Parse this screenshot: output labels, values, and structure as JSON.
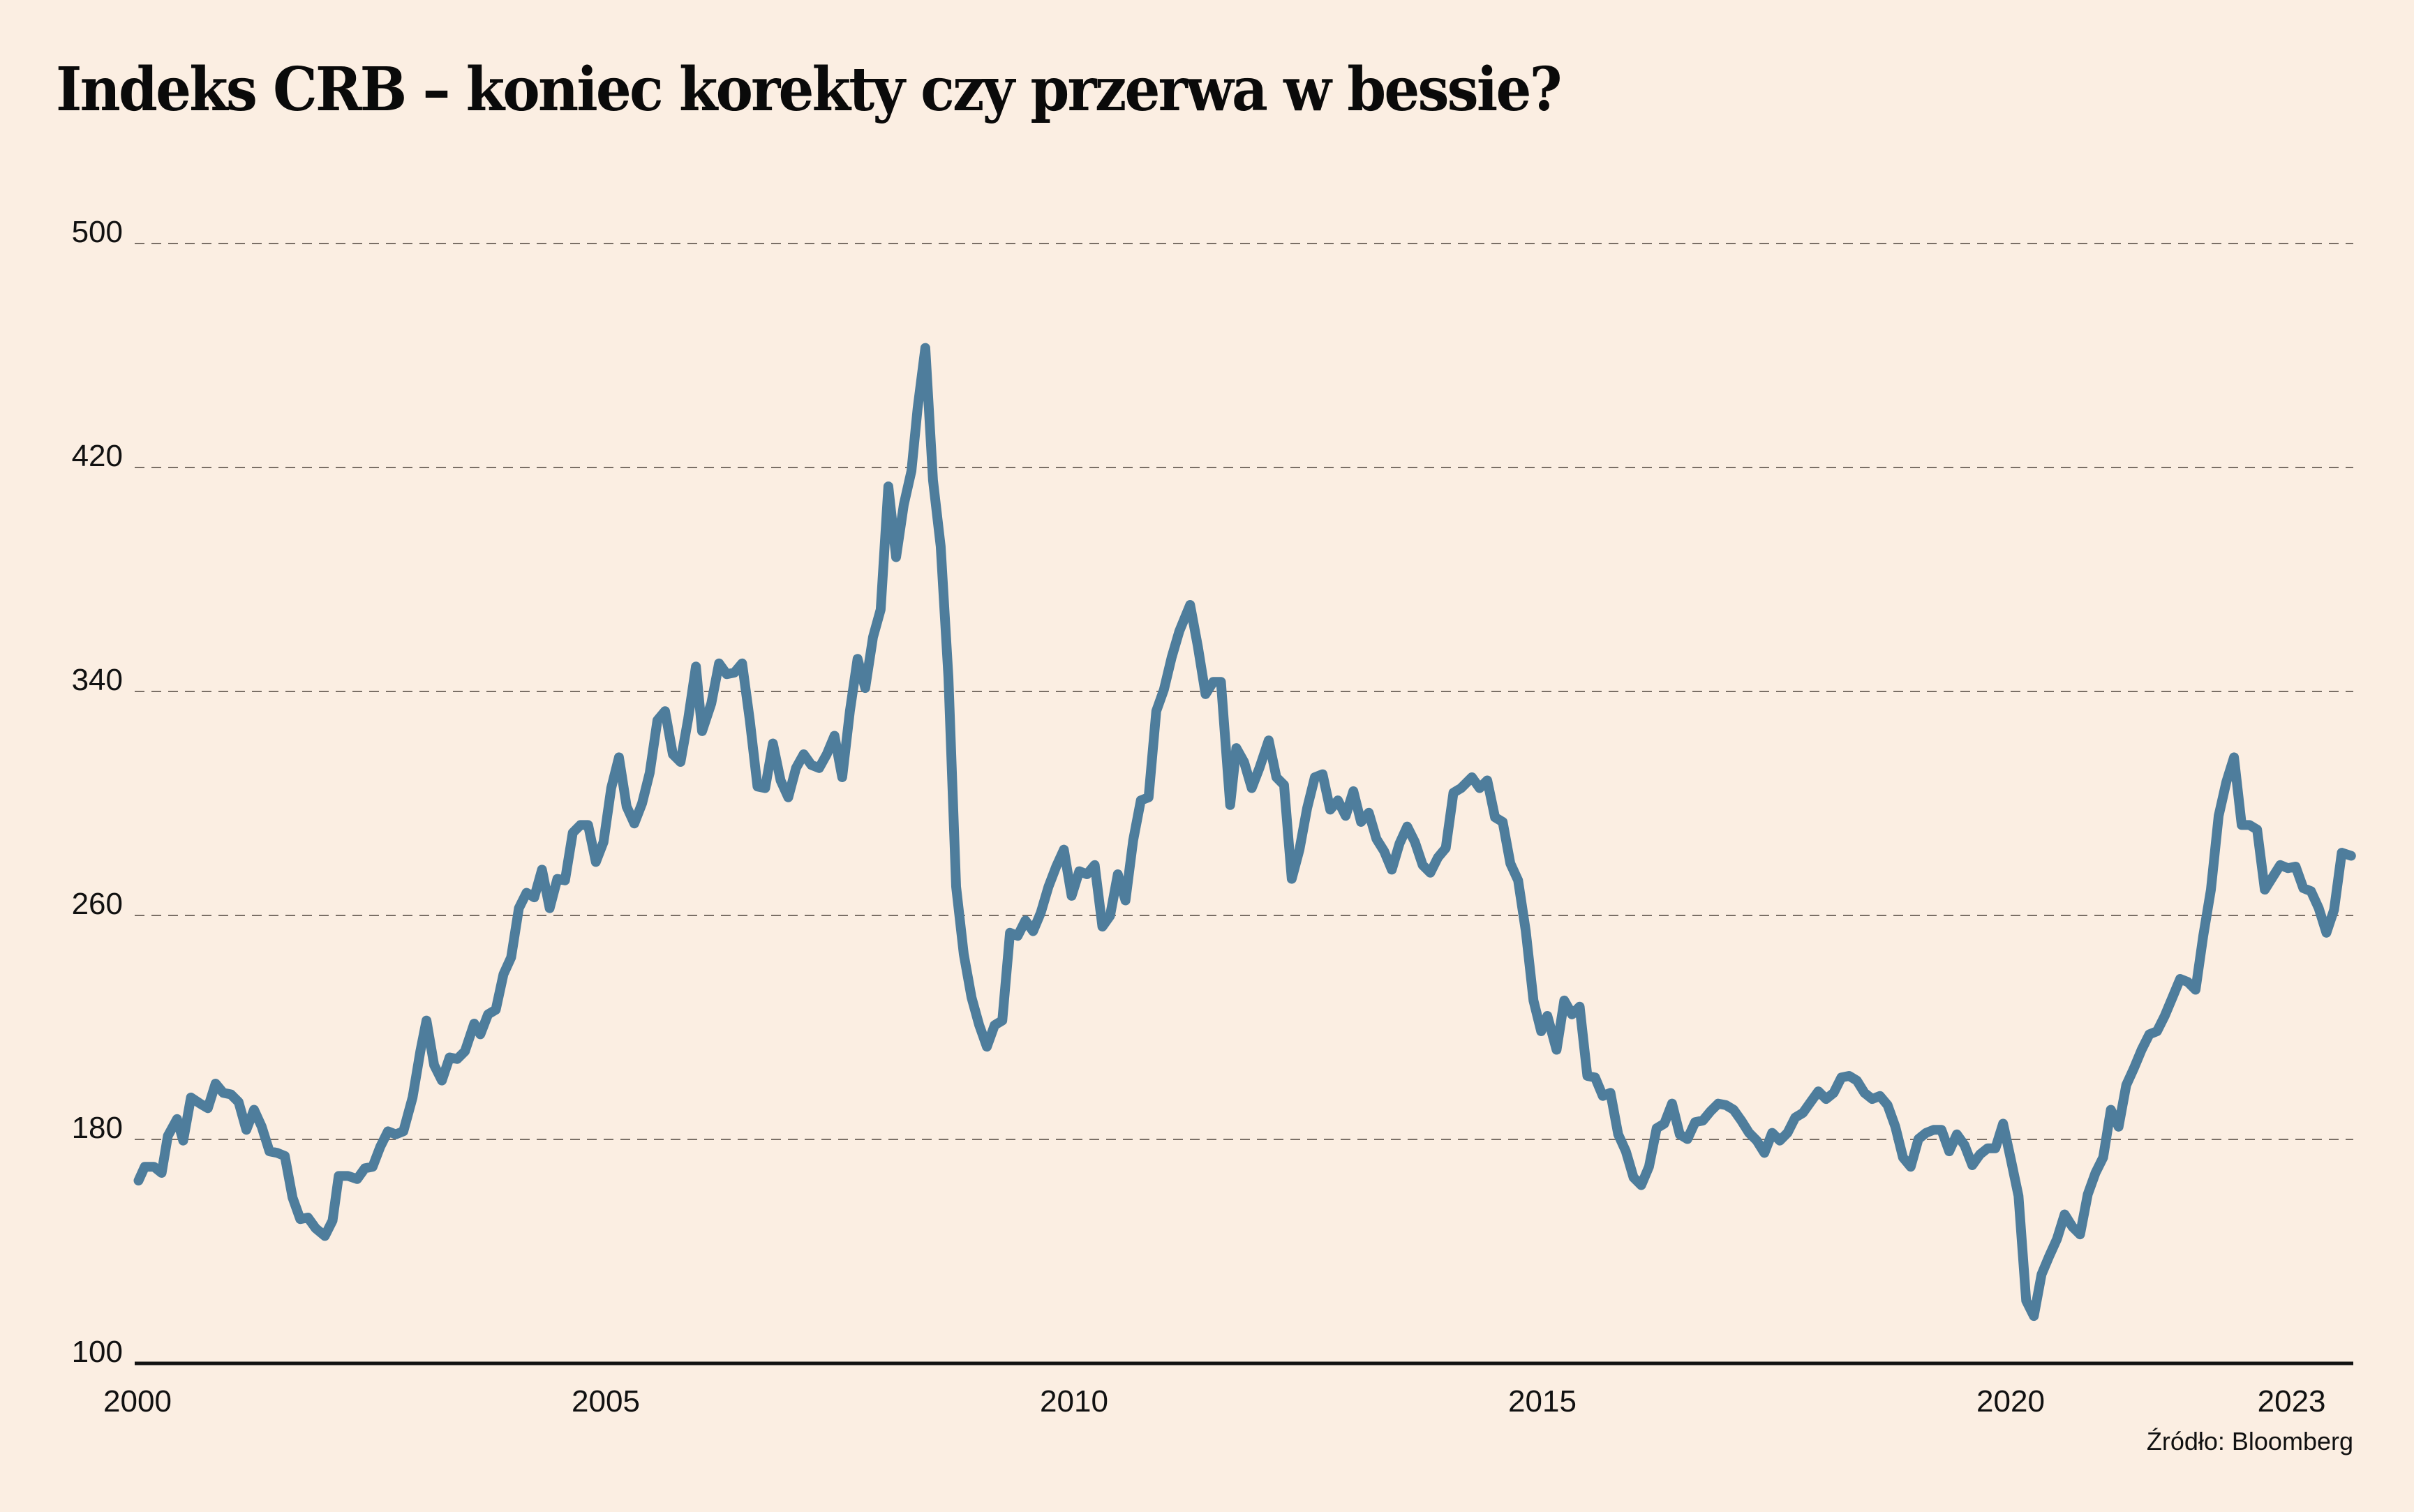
{
  "chart_data": {
    "type": "line",
    "title": "Indeks CRB – koniec korekty czy przerwa w bessie?",
    "source": "Źródło: Bloomberg",
    "xlabel": "",
    "ylabel": "",
    "ylim": [
      100,
      500
    ],
    "xlim": [
      2000,
      2023.65
    ],
    "yticks": [
      100,
      180,
      260,
      340,
      420,
      500
    ],
    "ytick_labels": [
      "100",
      "180",
      "260",
      "340",
      "420",
      "500"
    ],
    "xticks": [
      2000,
      2005,
      2010,
      2015,
      2020,
      2023
    ],
    "xtick_labels": [
      "2000",
      "2005",
      "2010",
      "2015",
      "2020",
      "2023"
    ],
    "grid": "horizontal-dashed",
    "line_color": "#4E7D9C",
    "series": [
      {
        "name": "Indeks CRB",
        "points_preview": [
          [
            90,
            767
          ],
          [
            94,
            758
          ],
          [
            100,
            758
          ],
          [
            105,
            762
          ],
          [
            109,
            738
          ],
          [
            115,
            727
          ],
          [
            119,
            741
          ],
          [
            124,
            713
          ],
          [
            130,
            717
          ],
          [
            135,
            720
          ],
          [
            140,
            704
          ],
          [
            145,
            710
          ],
          [
            150,
            711
          ],
          [
            155,
            716
          ],
          [
            160,
            734
          ],
          [
            165,
            721
          ],
          [
            170,
            732
          ],
          [
            175,
            748
          ],
          [
            180,
            749
          ],
          [
            185,
            751
          ],
          [
            190,
            778
          ],
          [
            195,
            792
          ],
          [
            200,
            791
          ],
          [
            205,
            798
          ],
          [
            211,
            803
          ],
          [
            216,
            793
          ],
          [
            220,
            764
          ],
          [
            226,
            764
          ],
          [
            232,
            766
          ],
          [
            237,
            759
          ],
          [
            242,
            758
          ],
          [
            247,
            745
          ],
          [
            252,
            735
          ],
          [
            257,
            737
          ],
          [
            262,
            735
          ],
          [
            268,
            713
          ],
          [
            273,
            683
          ],
          [
            277,
            663
          ],
          [
            282,
            692
          ],
          [
            287,
            702
          ],
          [
            292,
            687
          ],
          [
            297,
            688
          ],
          [
            302,
            683
          ],
          [
            308,
            665
          ],
          [
            312,
            672
          ],
          [
            317,
            659
          ],
          [
            322,
            656
          ],
          [
            327,
            633
          ],
          [
            332,
            622
          ],
          [
            337,
            590
          ],
          [
            342,
            580
          ],
          [
            347,
            583
          ],
          [
            352,
            565
          ],
          [
            357,
            590
          ],
          [
            362,
            571
          ],
          [
            367,
            572
          ],
          [
            372,
            541
          ],
          [
            377,
            536
          ],
          [
            382,
            536
          ],
          [
            387,
            560
          ],
          [
            392,
            547
          ],
          [
            397,
            512
          ],
          [
            402,
            492
          ],
          [
            407,
            524
          ],
          [
            412,
            535
          ],
          [
            417,
            522
          ],
          [
            422,
            502
          ],
          [
            427,
            468
          ],
          [
            432,
            462
          ],
          [
            437,
            490
          ],
          [
            442,
            495
          ],
          [
            447,
            467
          ],
          [
            452,
            433
          ],
          [
            456,
            475
          ],
          [
            462,
            457
          ],
          [
            467,
            431
          ],
          [
            472,
            438
          ],
          [
            477,
            437
          ],
          [
            482,
            431
          ],
          [
            487,
            468
          ],
          [
            492,
            511
          ],
          [
            497,
            512
          ],
          [
            502,
            483
          ],
          [
            507,
            507
          ],
          [
            512,
            518
          ],
          [
            517,
            499
          ],
          [
            522,
            490
          ],
          [
            527,
            497
          ],
          [
            532,
            499
          ],
          [
            537,
            490
          ],
          [
            542,
            478
          ],
          [
            547,
            505
          ],
          [
            552,
            462
          ],
          [
            557,
            428
          ],
          [
            562,
            447
          ],
          [
            567,
            414
          ],
          [
            572,
            396
          ],
          [
            577,
            316
          ],
          [
            582,
            362
          ],
          [
            587,
            328
          ],
          [
            592,
            306
          ],
          [
            596,
            265
          ],
          [
            601,
            226
          ],
          [
            606,
            312
          ],
          [
            611,
            355
          ],
          [
            616,
            440
          ],
          [
            621,
            576
          ],
          [
            626,
            620
          ],
          [
            631,
            648
          ],
          [
            636,
            666
          ],
          [
            641,
            680
          ],
          [
            646,
            666
          ],
          [
            651,
            663
          ],
          [
            656,
            606
          ],
          [
            661,
            608
          ],
          [
            666,
            598
          ],
          [
            671,
            605
          ],
          [
            676,
            593
          ],
          [
            681,
            576
          ],
          [
            686,
            563
          ],
          [
            691,
            552
          ],
          [
            696,
            582
          ],
          [
            701,
            566
          ],
          [
            706,
            568
          ],
          [
            711,
            562
          ],
          [
            716,
            602
          ],
          [
            721,
            595
          ],
          [
            726,
            568
          ],
          [
            731,
            585
          ],
          [
            736,
            546
          ],
          [
            741,
            520
          ],
          [
            746,
            518
          ],
          [
            751,
            462
          ],
          [
            756,
            448
          ],
          [
            761,
            427
          ],
          [
            766,
            410
          ],
          [
            773,
            393
          ],
          [
            778,
            420
          ],
          [
            783,
            451
          ],
          [
            788,
            443
          ],
          [
            793,
            443
          ],
          [
            799,
            523
          ],
          [
            803,
            486
          ],
          [
            808,
            495
          ],
          [
            813,
            512
          ],
          [
            818,
            499
          ],
          [
            824,
            481
          ],
          [
            829,
            505
          ],
          [
            834,
            510
          ],
          [
            839,
            571
          ],
          [
            844,
            552
          ],
          [
            849,
            525
          ],
          [
            854,
            505
          ],
          [
            859,
            503
          ],
          [
            864,
            526
          ],
          [
            869,
            520
          ],
          [
            874,
            530
          ],
          [
            879,
            514
          ],
          [
            884,
            534
          ],
          [
            889,
            528
          ],
          [
            894,
            545
          ],
          [
            899,
            553
          ],
          [
            904,
            565
          ],
          [
            909,
            548
          ],
          [
            914,
            537
          ],
          [
            919,
            547
          ],
          [
            924,
            562
          ],
          [
            929,
            567
          ],
          [
            934,
            557
          ],
          [
            939,
            551
          ],
          [
            944,
            515
          ],
          [
            949,
            512
          ],
          [
            956,
            505
          ],
          [
            961,
            512
          ],
          [
            966,
            507
          ],
          [
            971,
            531
          ],
          [
            976,
            534
          ],
          [
            981,
            561
          ],
          [
            986,
            572
          ],
          [
            991,
            605
          ],
          [
            996,
            650
          ],
          [
            1001,
            670
          ],
          [
            1005,
            660
          ],
          [
            1011,
            682
          ],
          [
            1016,
            650
          ],
          [
            1021,
            659
          ],
          [
            1026,
            654
          ],
          [
            1031,
            699
          ],
          [
            1036,
            700
          ],
          [
            1041,
            712
          ],
          [
            1046,
            710
          ],
          [
            1051,
            737
          ],
          [
            1056,
            748
          ],
          [
            1061,
            765
          ],
          [
            1066,
            770
          ],
          [
            1071,
            758
          ],
          [
            1076,
            733
          ],
          [
            1081,
            730
          ],
          [
            1086,
            717
          ],
          [
            1091,
            737
          ],
          [
            1096,
            740
          ],
          [
            1101,
            729
          ],
          [
            1106,
            728
          ],
          [
            1111,
            722
          ],
          [
            1116,
            717
          ],
          [
            1121,
            718
          ],
          [
            1126,
            721
          ],
          [
            1131,
            728
          ],
          [
            1136,
            736
          ],
          [
            1141,
            741
          ],
          [
            1146,
            749
          ],
          [
            1151,
            736
          ],
          [
            1156,
            741
          ],
          [
            1161,
            736
          ],
          [
            1166,
            726
          ],
          [
            1171,
            723
          ],
          [
            1176,
            716
          ],
          [
            1181,
            709
          ],
          [
            1186,
            714
          ],
          [
            1191,
            710
          ],
          [
            1196,
            700
          ],
          [
            1201,
            699
          ],
          [
            1206,
            702
          ],
          [
            1211,
            710
          ],
          [
            1216,
            714
          ],
          [
            1221,
            712
          ],
          [
            1226,
            718
          ],
          [
            1231,
            732
          ],
          [
            1236,
            752
          ],
          [
            1241,
            758
          ],
          [
            1246,
            740
          ],
          [
            1251,
            736
          ],
          [
            1256,
            734
          ],
          [
            1261,
            734
          ],
          [
            1266,
            748
          ],
          [
            1271,
            737
          ],
          [
            1276,
            744
          ],
          [
            1281,
            757
          ],
          [
            1286,
            750
          ],
          [
            1291,
            746
          ],
          [
            1296,
            746
          ],
          [
            1301,
            730
          ],
          [
            1306,
            753
          ],
          [
            1311,
            777
          ],
          [
            1316,
            845
          ],
          [
            1321,
            855
          ],
          [
            1326,
            828
          ],
          [
            1331,
            816
          ],
          [
            1336,
            805
          ],
          [
            1341,
            789
          ],
          [
            1346,
            797
          ],
          [
            1351,
            802
          ],
          [
            1356,
            776
          ],
          [
            1361,
            762
          ],
          [
            1366,
            752
          ],
          [
            1371,
            721
          ],
          [
            1376,
            732
          ],
          [
            1381,
            705
          ],
          [
            1386,
            694
          ],
          [
            1391,
            682
          ],
          [
            1396,
            672
          ],
          [
            1401,
            670
          ],
          [
            1406,
            660
          ],
          [
            1411,
            648
          ],
          [
            1416,
            636
          ],
          [
            1421,
            638
          ],
          [
            1426,
            643
          ],
          [
            1431,
            608
          ],
          [
            1436,
            578
          ],
          [
            1441,
            530
          ],
          [
            1446,
            508
          ],
          [
            1451,
            492
          ],
          [
            1456,
            536
          ],
          [
            1461,
            536
          ],
          [
            1466,
            539
          ],
          [
            1471,
            578
          ],
          [
            1476,
            570
          ],
          [
            1481,
            562
          ],
          [
            1486,
            564
          ],
          [
            1491,
            563
          ],
          [
            1496,
            577
          ],
          [
            1501,
            579
          ],
          [
            1506,
            590
          ],
          [
            1511,
            606
          ],
          [
            1516,
            591
          ],
          [
            1521,
            554
          ],
          [
            1527,
            556
          ]
        ]
      }
    ]
  }
}
